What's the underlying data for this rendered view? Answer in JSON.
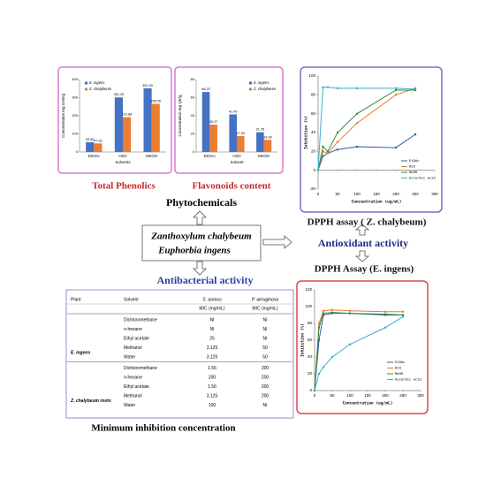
{
  "chart_data": [
    {
      "type": "bar",
      "caption": "Total Phenolics",
      "y_label": "Concentration mg GAE/g",
      "x_label": "Solvents",
      "categories": [
        "EtOAc",
        "H2O",
        "MeOH"
      ],
      "series": [
        {
          "name": "E. ingens",
          "color": "#4472c4",
          "values": [
            53.55,
            301.25,
            351.59
          ],
          "value_labels": [
            "53.55",
            "301.25",
            "351.59"
          ]
        },
        {
          "name": "Z. chalybeum",
          "color": "#ed7d31",
          "values": [
            47.33,
            191.88,
            266.05
          ],
          "value_labels": [
            "47.33",
            "191.88",
            "266.05"
          ]
        }
      ],
      "ylim": [
        0,
        400
      ],
      "yticks": [
        0,
        100,
        200,
        300,
        400
      ],
      "legend": "upper-left"
    },
    {
      "type": "bar",
      "caption": "Flavonoids content",
      "y_label": "Concentration mg QE/g",
      "x_label": "Solvent",
      "categories": [
        "EtOAc",
        "H2O",
        "MeOH"
      ],
      "series": [
        {
          "name": "E. ingens",
          "color": "#4472c4",
          "values": [
            66.23,
            41.49,
            21.76
          ],
          "value_labels": [
            "66.23",
            "41.49",
            "21.76"
          ]
        },
        {
          "name": "Z. chalybeum",
          "color": "#ed7d31",
          "values": [
            30.27,
            17.54,
            13.4
          ],
          "value_labels": [
            "30.27",
            "17.54",
            "13.40"
          ]
        }
      ],
      "ylim": [
        0,
        80
      ],
      "yticks": [
        0,
        20,
        40,
        60,
        80
      ],
      "legend": "upper-right"
    },
    {
      "type": "line",
      "caption": "DPPH assay ( Z. chalybeum)",
      "y_label": "Inhibition (%)",
      "x_label": "Concentration (ug/mL)",
      "x": [
        0,
        12.5,
        25,
        50,
        100,
        200,
        250
      ],
      "series": [
        {
          "name": "EtOAc",
          "color": "#2e5fa3",
          "values": [
            0,
            15,
            18,
            22,
            25,
            24,
            38
          ]
        },
        {
          "name": "H2O",
          "color": "#e87b2f",
          "values": [
            0,
            20,
            18,
            30,
            50,
            80,
            87
          ]
        },
        {
          "name": "MeOH",
          "color": "#2d8a3e",
          "values": [
            0,
            25,
            20,
            40,
            60,
            85,
            85
          ]
        },
        {
          "name": "Ascorbic acid",
          "color": "#3ab0d0",
          "values": [
            0,
            88,
            88,
            87,
            87,
            87,
            86
          ]
        }
      ],
      "xlim": [
        0,
        300
      ],
      "xticks": [
        0,
        50,
        100,
        150,
        200,
        250,
        300
      ],
      "ylim": [
        -20,
        100
      ],
      "yticks": [
        -20,
        0,
        20,
        40,
        60,
        80,
        100
      ],
      "legend": "lower-right"
    },
    {
      "type": "line",
      "caption": "DPPH Assay (E. ingens)",
      "y_label": "Inhibition (%)",
      "x_label": "Concentration (ug/mL)",
      "x": [
        0,
        12.5,
        25,
        50,
        100,
        200,
        250
      ],
      "series": [
        {
          "name": "EtOAc",
          "color": "#2e5fa3",
          "values": [
            0,
            60,
            90,
            92,
            92,
            90,
            90
          ]
        },
        {
          "name": "H2O",
          "color": "#e87b2f",
          "values": [
            0,
            80,
            95,
            96,
            95,
            94,
            94
          ]
        },
        {
          "name": "MeOH",
          "color": "#2d8a3e",
          "values": [
            0,
            75,
            92,
            93,
            92,
            91,
            90
          ]
        },
        {
          "name": "Ascorbic acid",
          "color": "#3ab0d0",
          "values": [
            0,
            20,
            28,
            40,
            55,
            75,
            88
          ]
        }
      ],
      "xlim": [
        0,
        300
      ],
      "xticks": [
        0,
        50,
        100,
        150,
        200,
        250,
        300
      ],
      "ylim": [
        0,
        120
      ],
      "yticks": [
        0,
        20,
        40,
        60,
        80,
        100,
        120
      ],
      "legend": "lower-right"
    }
  ],
  "phytochemicals_label": "Phytochemicals",
  "plants": [
    "Zanthoxylum chalybeum",
    "Euphorbia ingens"
  ],
  "antioxidant_label": "Antioxidant activity",
  "antibacterial_label": "Antibacterial activity",
  "mic_table": {
    "caption": "Minimum inhibition concentration",
    "columns": [
      "Plant",
      "Solvent",
      "S. aureus",
      "P. aeruginosa"
    ],
    "units": [
      "MIC (mg/mL)",
      "MIC (mg/mL)"
    ],
    "groups": [
      {
        "plant": "E. ingens",
        "rows": [
          [
            "Dichloromethane",
            "NI",
            "NI"
          ],
          [
            "n-hexane",
            "NI",
            "NI"
          ],
          [
            "Ethyl acetate",
            "25",
            "NI"
          ],
          [
            "Methanol",
            "3.125",
            "50"
          ],
          [
            "Water",
            "3.125",
            "50"
          ]
        ]
      },
      {
        "plant": "Z. chalybeum roots",
        "rows": [
          [
            "Dichloromethane",
            "1.56",
            "200"
          ],
          [
            "n-hexane",
            "200",
            "200"
          ],
          [
            "Ethyl acetate",
            "1.56",
            "200"
          ],
          [
            "Methanol",
            "3.125",
            "200"
          ],
          [
            "Water",
            "100",
            "NI"
          ]
        ]
      }
    ]
  }
}
